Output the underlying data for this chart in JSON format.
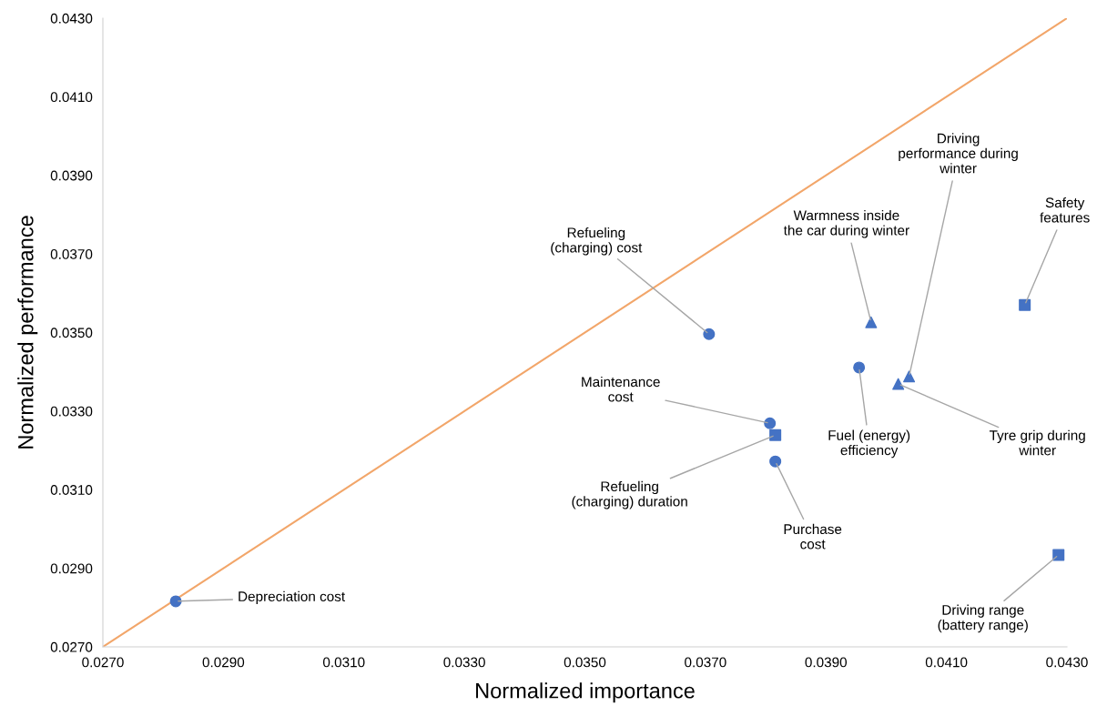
{
  "chart_data": {
    "type": "scatter",
    "xlabel": "Normalized importance",
    "ylabel": "Normalized performance",
    "xlim": [
      0.027,
      0.043
    ],
    "ylim": [
      0.027,
      0.043
    ],
    "xticks": [
      {
        "value": 0.027,
        "label": "0.0270"
      },
      {
        "value": 0.029,
        "label": "0.0290"
      },
      {
        "value": 0.031,
        "label": "0.0310"
      },
      {
        "value": 0.033,
        "label": "0.0330"
      },
      {
        "value": 0.035,
        "label": "0.0350"
      },
      {
        "value": 0.037,
        "label": "0.0370"
      },
      {
        "value": 0.039,
        "label": "0.0390"
      },
      {
        "value": 0.041,
        "label": "0.0410"
      },
      {
        "value": 0.043,
        "label": "0.0430"
      }
    ],
    "yticks": [
      {
        "value": 0.027,
        "label": "0.0270"
      },
      {
        "value": 0.029,
        "label": "0.0290"
      },
      {
        "value": 0.031,
        "label": "0.0310"
      },
      {
        "value": 0.033,
        "label": "0.0330"
      },
      {
        "value": 0.035,
        "label": "0.0350"
      },
      {
        "value": 0.037,
        "label": "0.0370"
      },
      {
        "value": 0.039,
        "label": "0.0390"
      },
      {
        "value": 0.041,
        "label": "0.0410"
      },
      {
        "value": 0.043,
        "label": "0.0430"
      }
    ],
    "grid": false,
    "series": [
      {
        "type": "line",
        "color": "#f2a66a",
        "marker": "none",
        "x": [
          0.027,
          0.043
        ],
        "values": [
          0.027,
          0.043
        ]
      },
      {
        "color": "#4472c4",
        "marker": "circle",
        "x": [
          0.02821,
          0.03706,
          0.03807,
          0.03816,
          0.03955
        ],
        "values": [
          0.02816,
          0.03496,
          0.03269,
          0.03172,
          0.03411
        ]
      },
      {
        "color": "#4472c4",
        "marker": "triangle",
        "x": [
          0.03975,
          0.0402,
          0.04038
        ],
        "values": [
          0.03526,
          0.03369,
          0.03388
        ]
      },
      {
        "color": "#4472c4",
        "marker": "square",
        "x": [
          0.03816,
          0.0423,
          0.04286
        ],
        "values": [
          0.03239,
          0.0357,
          0.02934
        ]
      }
    ],
    "annotations": [
      {
        "text": "Depreciation cost",
        "x": 0.02821,
        "y": 0.02816
      },
      {
        "text": "Refueling\n(charging) cost",
        "x": 0.03706,
        "y": 0.03496
      },
      {
        "text": "Maintenance\ncost",
        "x": 0.03807,
        "y": 0.03269
      },
      {
        "text": "Refueling\n(charging) duration",
        "x": 0.03816,
        "y": 0.03239
      },
      {
        "text": "Purchase\ncost",
        "x": 0.03816,
        "y": 0.03172
      },
      {
        "text": "Fuel (energy)\nefficiency",
        "x": 0.03955,
        "y": 0.03411
      },
      {
        "text": "Warmness inside\nthe car during winter",
        "x": 0.03975,
        "y": 0.03526
      },
      {
        "text": "Driving\nperformance during\nwinter",
        "x": 0.04038,
        "y": 0.03388
      },
      {
        "text": "Safety\nfeatures",
        "x": 0.0423,
        "y": 0.0357
      },
      {
        "text": "Tyre grip during\nwinter",
        "x": 0.0402,
        "y": 0.03369
      },
      {
        "text": "Driving range\n(battery range)",
        "x": 0.04286,
        "y": 0.02934
      }
    ]
  }
}
